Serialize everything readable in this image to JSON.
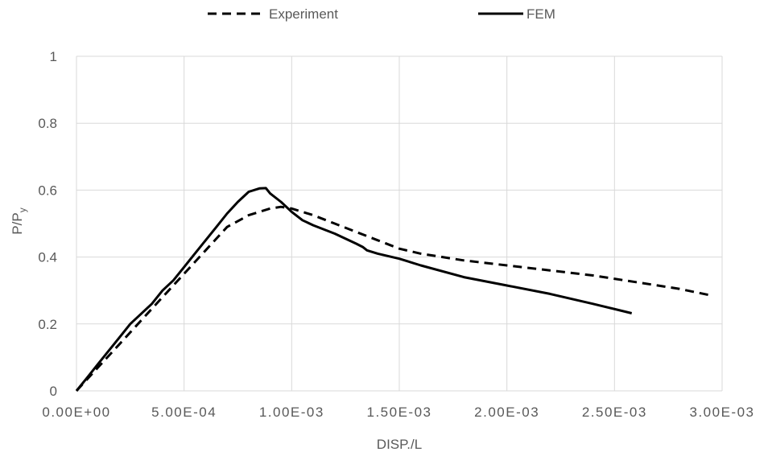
{
  "chart_data": {
    "type": "line",
    "title": "",
    "xlabel": "DISP./L",
    "ylabel": {
      "main": "P/P",
      "sub": "y"
    },
    "xlim": [
      0,
      0.003
    ],
    "ylim": [
      0,
      1
    ],
    "x_ticks": [
      0,
      0.0005,
      0.001,
      0.0015,
      0.002,
      0.0025,
      0.003
    ],
    "x_tick_labels": [
      "0.00E+00",
      "5.00E-04",
      "1.00E-03",
      "1.50E-03",
      "2.00E-03",
      "2.50E-03",
      "3.00E-03"
    ],
    "y_ticks": [
      0,
      0.2,
      0.4,
      0.6,
      0.8,
      1
    ],
    "y_tick_labels": [
      "0",
      "0.2",
      "0.4",
      "0.6",
      "0.8",
      "1"
    ],
    "grid": true,
    "legend_position": "top",
    "series": [
      {
        "name": "Experiment",
        "style": "dashed",
        "color": "#000000",
        "x": [
          0,
          0.0001,
          0.0002,
          0.0003,
          0.0004,
          0.0005,
          0.0006,
          0.0007,
          0.0008,
          0.0009,
          0.00095,
          0.001,
          0.0011,
          0.0012,
          0.0013,
          0.0014,
          0.0015,
          0.0016,
          0.0018,
          0.002,
          0.0022,
          0.0024,
          0.0026,
          0.0028,
          0.00295
        ],
        "y": [
          0,
          0.07,
          0.14,
          0.21,
          0.28,
          0.35,
          0.42,
          0.49,
          0.525,
          0.545,
          0.55,
          0.545,
          0.525,
          0.5,
          0.475,
          0.45,
          0.425,
          0.41,
          0.39,
          0.375,
          0.36,
          0.345,
          0.325,
          0.305,
          0.285
        ]
      },
      {
        "name": "FEM",
        "style": "solid",
        "color": "#000000",
        "x": [
          0,
          5e-05,
          0.0001,
          0.00015,
          0.0002,
          0.00025,
          0.0003,
          0.00035,
          0.0004,
          0.00045,
          0.0005,
          0.00055,
          0.0006,
          0.00065,
          0.0007,
          0.00075,
          0.0008,
          0.00085,
          0.00088,
          0.0009,
          0.00095,
          0.001,
          0.00105,
          0.0011,
          0.0012,
          0.0013,
          0.00133,
          0.00135,
          0.0014,
          0.0015,
          0.0016,
          0.0018,
          0.002,
          0.0022,
          0.0024,
          0.00258
        ],
        "y": [
          0,
          0.04,
          0.08,
          0.12,
          0.16,
          0.2,
          0.23,
          0.26,
          0.3,
          0.33,
          0.37,
          0.41,
          0.45,
          0.49,
          0.53,
          0.565,
          0.595,
          0.605,
          0.606,
          0.59,
          0.565,
          0.535,
          0.51,
          0.495,
          0.47,
          0.44,
          0.43,
          0.42,
          0.41,
          0.395,
          0.375,
          0.34,
          0.315,
          0.29,
          0.26,
          0.232
        ]
      }
    ]
  }
}
